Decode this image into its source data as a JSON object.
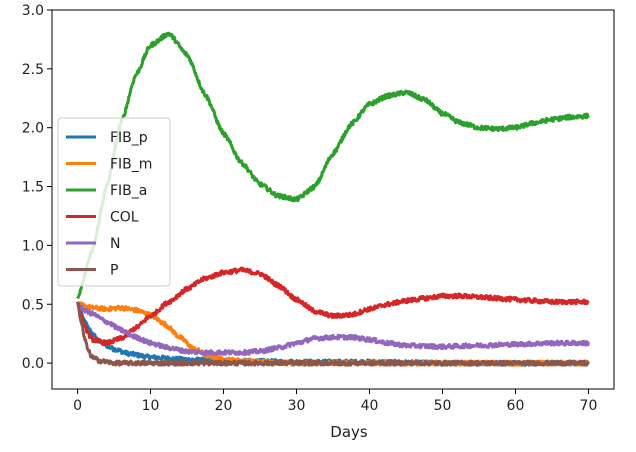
{
  "chart_data": {
    "type": "line",
    "title": "",
    "xlabel": "Days",
    "ylabel": "",
    "xlim": [
      -3.5,
      73.5
    ],
    "ylim": [
      -0.22,
      3.0
    ],
    "xticks": [
      0,
      10,
      20,
      30,
      40,
      50,
      60,
      70
    ],
    "yticks": [
      0.0,
      0.5,
      1.0,
      1.5,
      2.0,
      2.5,
      3.0
    ],
    "xtick_labels": [
      "0",
      "10",
      "20",
      "30",
      "40",
      "50",
      "60",
      "70"
    ],
    "ytick_labels": [
      "0.0",
      "0.5",
      "1.0",
      "1.5",
      "2.0",
      "2.5",
      "3.0"
    ],
    "grid": false,
    "legend_position": "center-left",
    "series": [
      {
        "name": "FIB_p",
        "color": "#1f77b4",
        "x": [
          0,
          1,
          2,
          3,
          5,
          7,
          10,
          15,
          20,
          30,
          40,
          50,
          60,
          70
        ],
        "y": [
          0.5,
          0.35,
          0.25,
          0.18,
          0.12,
          0.08,
          0.05,
          0.03,
          0.02,
          0.01,
          0.01,
          0.0,
          0.0,
          0.0
        ]
      },
      {
        "name": "FIB_m",
        "color": "#ff7f0e",
        "x": [
          0,
          2,
          4,
          6,
          8,
          10,
          12,
          14,
          16,
          18,
          20,
          25,
          30,
          40,
          50,
          60,
          70
        ],
        "y": [
          0.5,
          0.47,
          0.46,
          0.47,
          0.45,
          0.41,
          0.33,
          0.22,
          0.12,
          0.06,
          0.03,
          0.01,
          0.0,
          0.0,
          0.0,
          0.0,
          0.0
        ]
      },
      {
        "name": "FIB_a",
        "color": "#2ca02c",
        "x": [
          0,
          2,
          4,
          6,
          8,
          10,
          12.5,
          15,
          17.5,
          20,
          22.5,
          25,
          27.5,
          30,
          32.5,
          35,
          37.5,
          40,
          42.5,
          45,
          47.5,
          50,
          52.5,
          55,
          57.5,
          60,
          62.5,
          65,
          67.5,
          70
        ],
        "y": [
          0.55,
          0.95,
          1.5,
          2.05,
          2.45,
          2.7,
          2.8,
          2.62,
          2.28,
          1.95,
          1.7,
          1.52,
          1.42,
          1.39,
          1.5,
          1.78,
          2.03,
          2.2,
          2.27,
          2.3,
          2.24,
          2.12,
          2.04,
          2.0,
          1.99,
          2.0,
          2.04,
          2.07,
          2.09,
          2.1
        ]
      },
      {
        "name": "COL",
        "color": "#d62728",
        "x": [
          0,
          1,
          2,
          4,
          6,
          8,
          10,
          12.5,
          15,
          17.5,
          20,
          22.5,
          25,
          27.5,
          30,
          32.5,
          35,
          37.5,
          40,
          42.5,
          45,
          47.5,
          50,
          52.5,
          55,
          57.5,
          60,
          62.5,
          65,
          67.5,
          70
        ],
        "y": [
          0.52,
          0.3,
          0.2,
          0.17,
          0.21,
          0.3,
          0.4,
          0.52,
          0.63,
          0.72,
          0.77,
          0.79,
          0.76,
          0.66,
          0.54,
          0.44,
          0.4,
          0.41,
          0.46,
          0.5,
          0.53,
          0.55,
          0.57,
          0.57,
          0.56,
          0.55,
          0.54,
          0.53,
          0.52,
          0.52,
          0.52
        ]
      },
      {
        "name": "N",
        "color": "#9467bd",
        "x": [
          0,
          2,
          4,
          6,
          8,
          10,
          12.5,
          15,
          17.5,
          20,
          22.5,
          25,
          27.5,
          30,
          32.5,
          35,
          37.5,
          40,
          42.5,
          45,
          50,
          55,
          60,
          65,
          70
        ],
        "y": [
          0.48,
          0.42,
          0.35,
          0.28,
          0.22,
          0.17,
          0.13,
          0.1,
          0.09,
          0.09,
          0.09,
          0.1,
          0.13,
          0.17,
          0.21,
          0.22,
          0.22,
          0.2,
          0.17,
          0.15,
          0.14,
          0.15,
          0.16,
          0.17,
          0.17
        ]
      },
      {
        "name": "P",
        "color": "#8c564b",
        "x": [
          0,
          0.5,
          1,
          1.5,
          2,
          3,
          4,
          5,
          7,
          10,
          15,
          20,
          30,
          40,
          50,
          60,
          70
        ],
        "y": [
          0.52,
          0.35,
          0.2,
          0.1,
          0.05,
          0.02,
          0.01,
          0.0,
          0.0,
          0.0,
          0.0,
          0.0,
          0.0,
          0.0,
          0.0,
          0.0,
          0.0
        ]
      }
    ]
  }
}
